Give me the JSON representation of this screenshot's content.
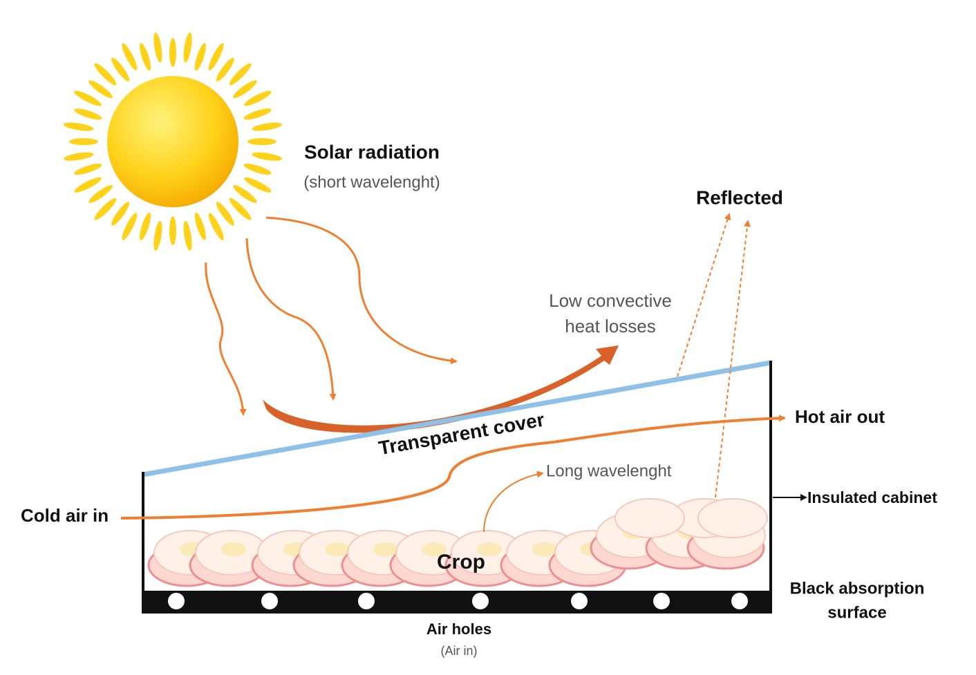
{
  "labels": {
    "solar_radiation": "Solar radiation",
    "solar_note": "(short wavelenght)",
    "reflected": "Reflected",
    "convective": [
      "Low convective",
      "heat losses"
    ],
    "cover": "Transparent cover",
    "hot_air": "Hot air out",
    "long_wave": "Long wavelenght",
    "cabinet": "Insulated cabinet",
    "cold_air": "Cold air in",
    "crop": "Crop",
    "absorption": [
      "Black absorption",
      "surface"
    ],
    "air_holes": "Air holes",
    "air_holes_note": "(Air in)"
  }
}
